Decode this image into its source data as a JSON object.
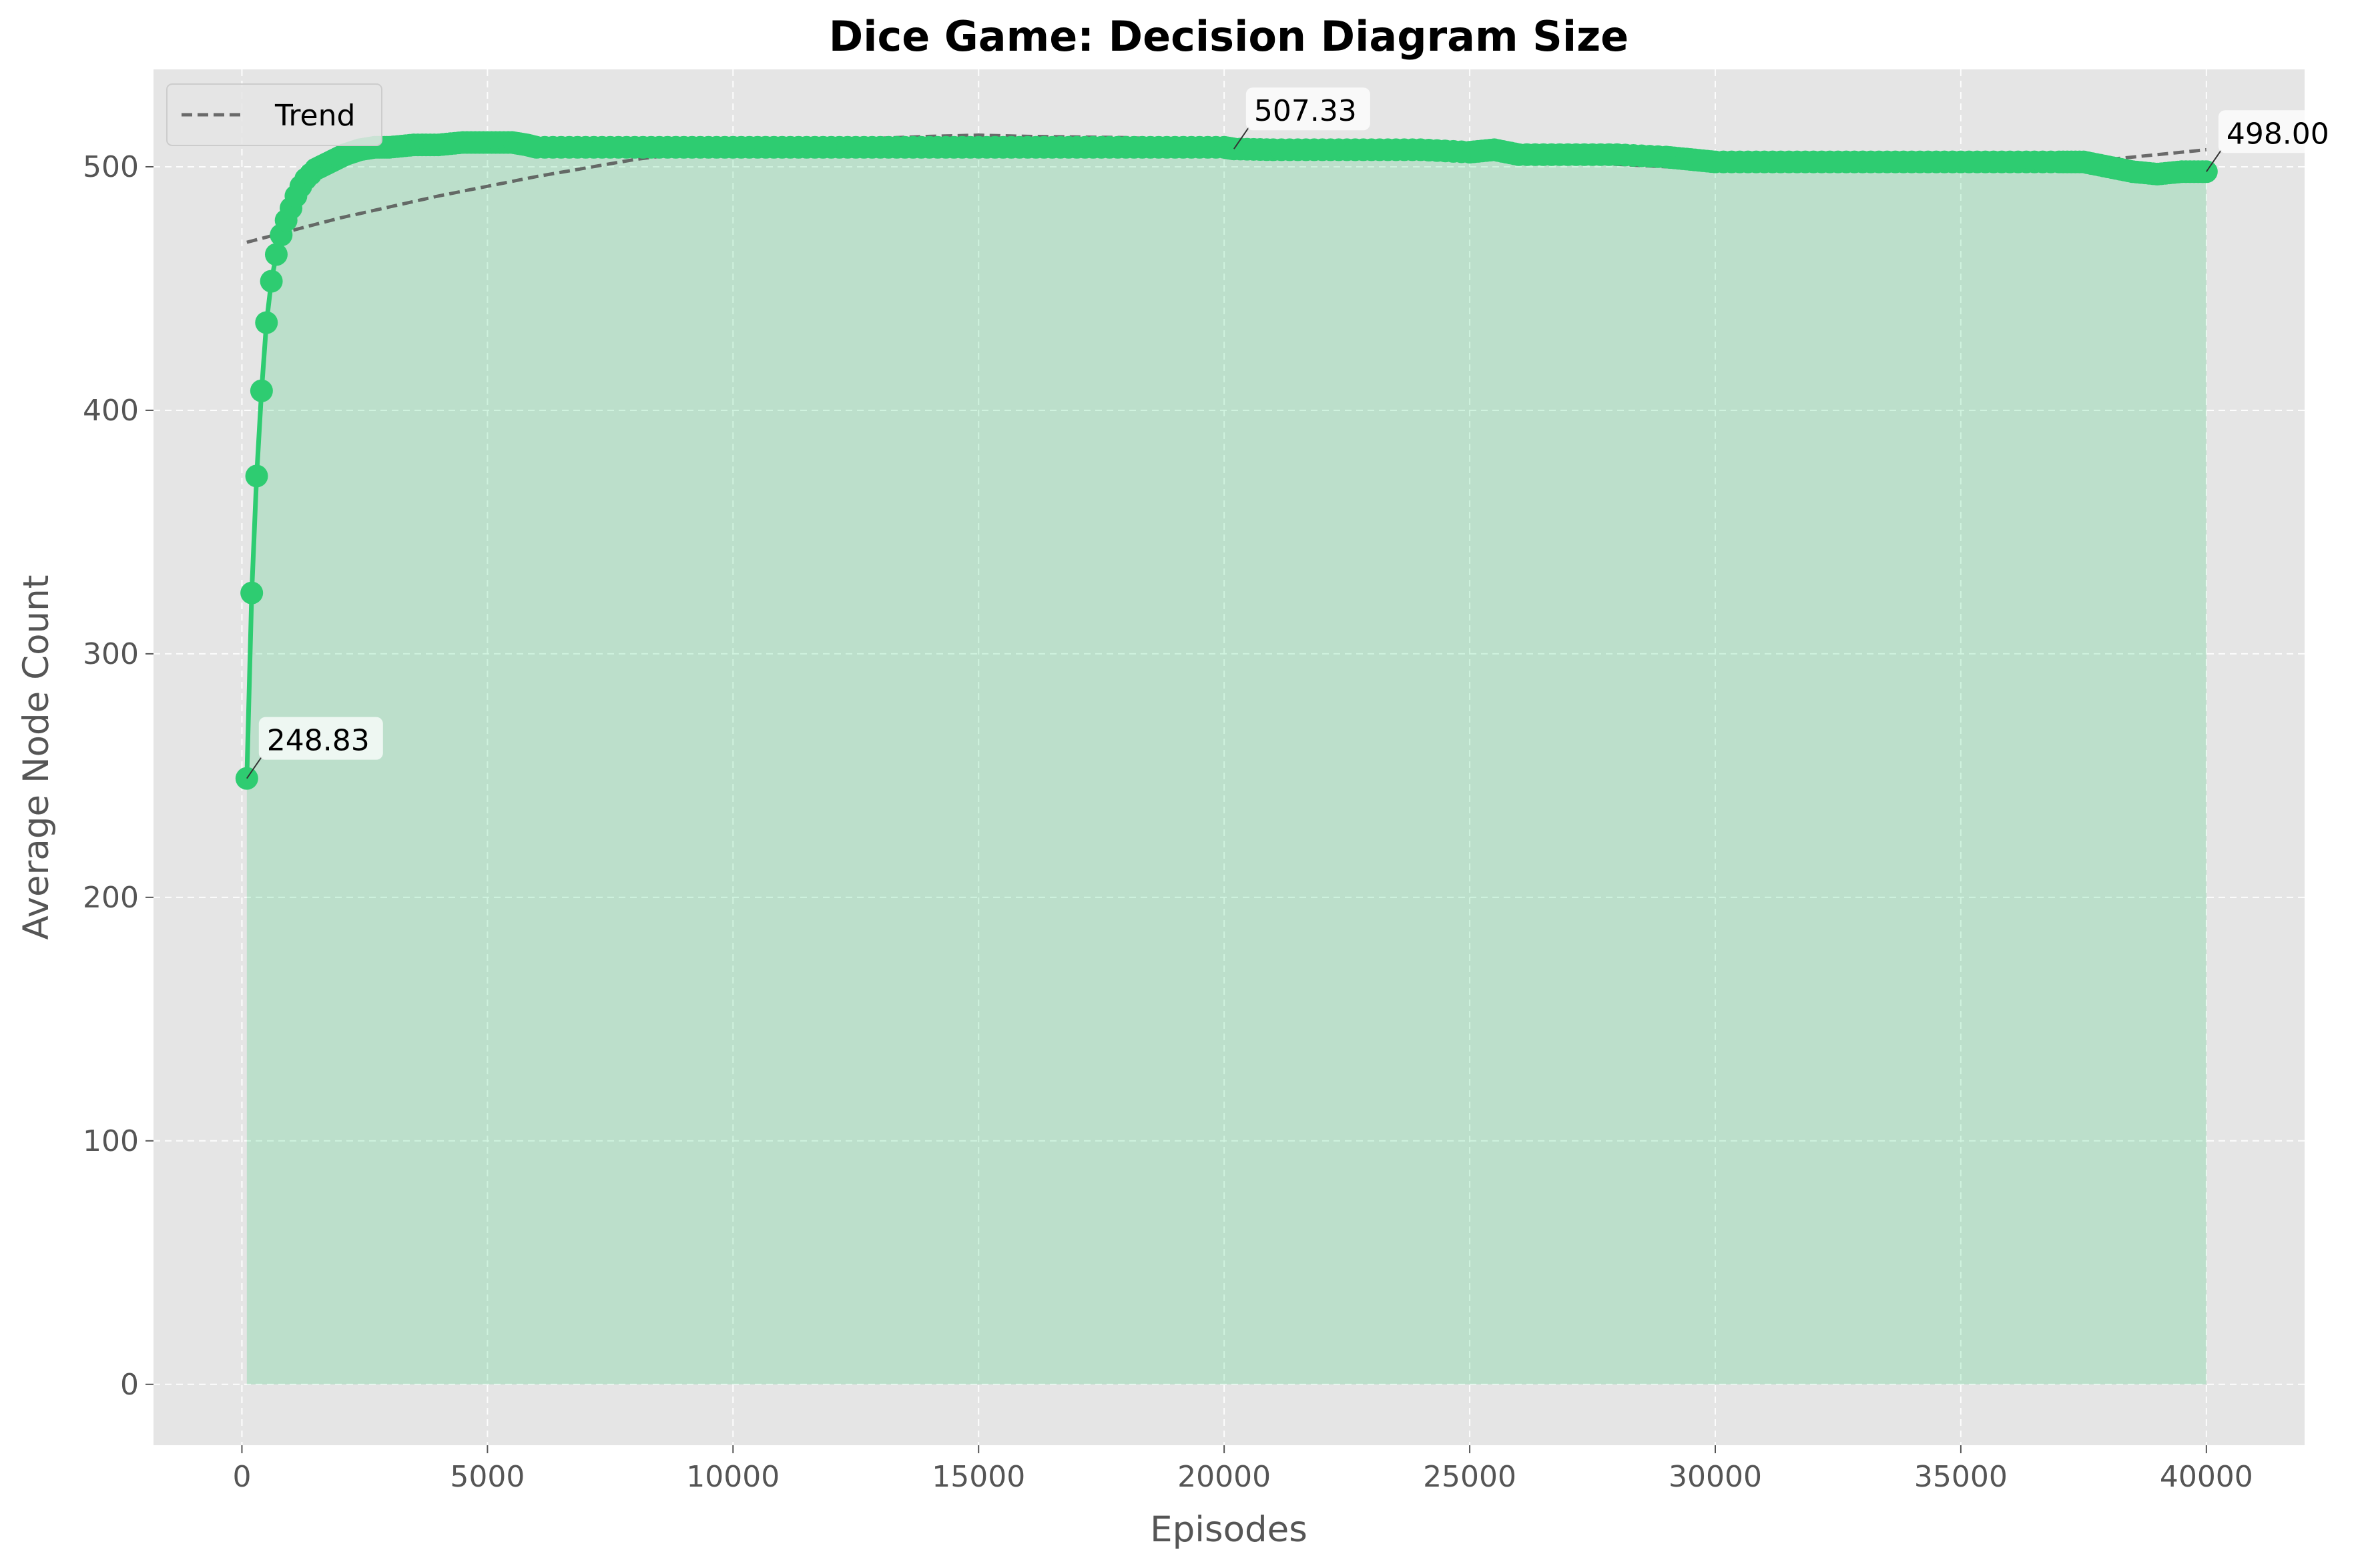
{
  "chart_data": {
    "type": "line",
    "title": "Dice Game: Decision Diagram Size",
    "xlabel": "Episodes",
    "ylabel": "Average Node Count",
    "xlim": [
      -1800,
      42000
    ],
    "ylim": [
      -25,
      540
    ],
    "xticks": [
      0,
      5000,
      10000,
      15000,
      20000,
      25000,
      30000,
      35000,
      40000
    ],
    "yticks": [
      0,
      100,
      200,
      300,
      400,
      500
    ],
    "grid": true,
    "legend_position": "top-left",
    "colors": {
      "series": "#2ecc71",
      "fill": "#2ecc71",
      "trend": "#555555",
      "background": "#e5e5e5",
      "grid": "#ffffff"
    },
    "series": [
      {
        "name": "",
        "x": [
          100,
          200,
          300,
          400,
          500,
          600,
          700,
          800,
          900,
          1000,
          1100,
          1200,
          1300,
          1400,
          1500,
          1700,
          1900,
          2100,
          2400,
          2700,
          3000,
          3500,
          4000,
          4500,
          5000,
          5500,
          5800,
          6000,
          7000,
          8000,
          9000,
          10000,
          11000,
          12000,
          13000,
          14000,
          15000,
          16000,
          17000,
          18000,
          19000,
          20000,
          20200,
          21000,
          22000,
          23000,
          24000,
          25000,
          25500,
          26000,
          27000,
          28000,
          29000,
          29500,
          30000,
          31000,
          32000,
          33000,
          34000,
          35000,
          36000,
          37000,
          37500,
          38000,
          38500,
          39000,
          39500,
          40000
        ],
        "values": [
          248.83,
          325,
          373,
          408,
          436,
          453,
          464,
          472,
          478,
          483,
          488,
          492,
          495,
          497,
          499,
          501,
          503,
          505,
          507,
          508,
          508,
          509,
          509,
          510,
          510,
          510,
          509,
          508,
          508,
          508,
          508,
          508,
          508,
          508,
          508,
          508,
          508,
          508,
          508,
          508,
          508,
          508,
          507.33,
          507,
          507,
          507,
          507,
          506,
          507,
          505,
          505,
          505,
          504,
          503,
          502,
          502,
          502,
          502,
          502,
          502,
          502,
          502,
          502,
          500,
          498,
          497,
          498,
          498.0
        ]
      }
    ],
    "trend": {
      "name": "Trend",
      "x": [
        100,
        2000,
        4000,
        6000,
        8000,
        10000,
        12000,
        14000,
        15000,
        16000,
        18000,
        20000,
        22000,
        24000,
        26000,
        28000,
        30000,
        32000,
        34000,
        36000,
        38000,
        40000
      ],
      "values": [
        469,
        479,
        488,
        496,
        503,
        508,
        511,
        512.5,
        513,
        512.5,
        512,
        510.5,
        508.5,
        506,
        503.5,
        501,
        499,
        498.5,
        498.5,
        500,
        503,
        507
      ]
    },
    "annotations": [
      {
        "x": 100,
        "y": 248.83,
        "text": "248.83"
      },
      {
        "x": 20200,
        "y": 507.33,
        "text": "507.33"
      },
      {
        "x": 40000,
        "y": 498.0,
        "text": "498.00"
      }
    ]
  }
}
